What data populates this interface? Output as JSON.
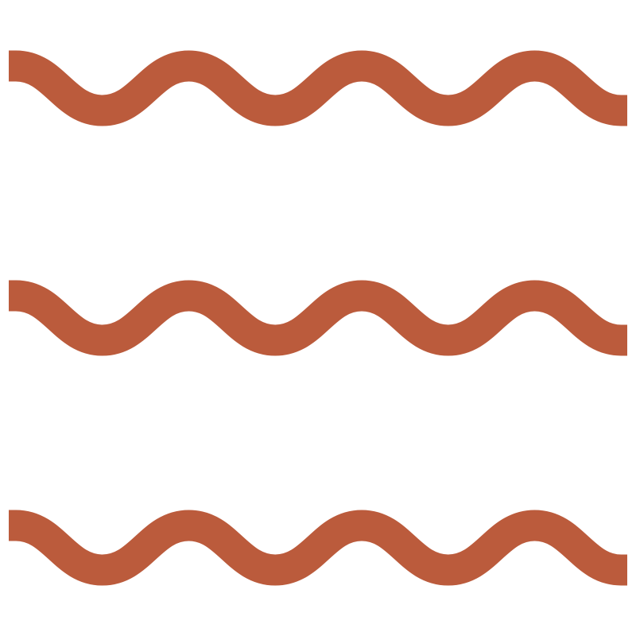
{
  "icon": "wavy-lines-icon",
  "wave_count": 3,
  "crests_per_wave": 4,
  "colors": {
    "background": "#ffffff",
    "stroke": "#bb5b3c"
  }
}
